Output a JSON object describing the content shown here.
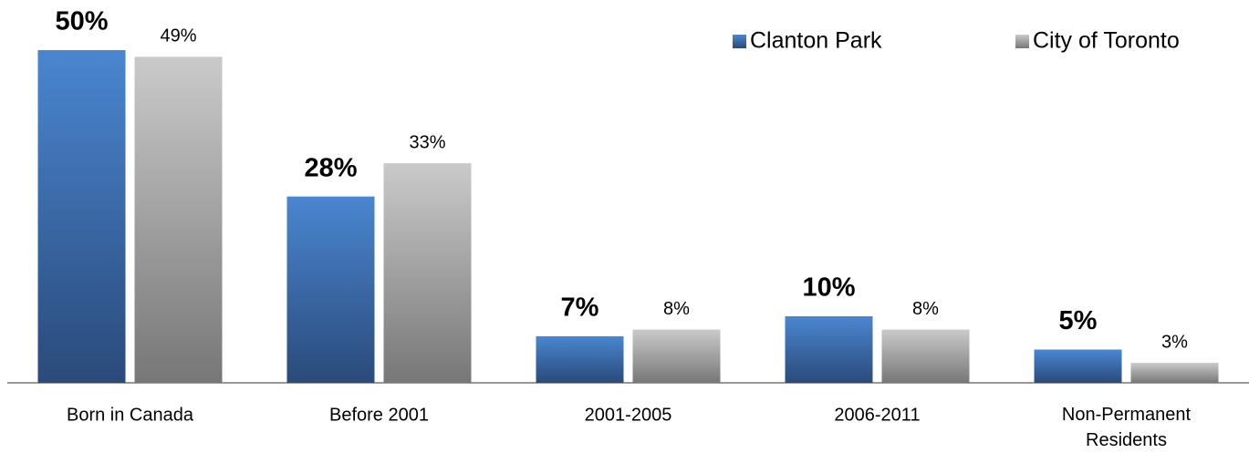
{
  "chart_data": {
    "type": "bar",
    "categories": [
      "Born in Canada",
      "Before 2001",
      "2001-2005",
      "2006-2011",
      "Non-Permanent Residents"
    ],
    "series": [
      {
        "name": "Clanton Park",
        "color": "#3d74ba",
        "values": [
          50,
          28,
          7,
          10,
          5
        ],
        "value_labels": [
          "50%",
          "28%",
          "7%",
          "10%",
          "5%"
        ]
      },
      {
        "name": "City of Toronto",
        "color": "#a6a6a6",
        "values": [
          49,
          33,
          8,
          8,
          3
        ],
        "value_labels": [
          "49%",
          "33%",
          "8%",
          "8%",
          "3%"
        ]
      }
    ],
    "legend": "top-right"
  }
}
